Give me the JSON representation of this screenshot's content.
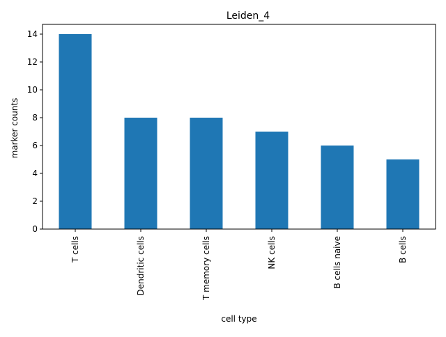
{
  "chart_data": {
    "type": "bar",
    "title": "Leiden_4",
    "xlabel": "cell type",
    "ylabel": "marker counts",
    "categories": [
      "T cells",
      "Dendritic cells",
      "T memory cells",
      "NK cells",
      "B cells naive",
      "B cells"
    ],
    "values": [
      14,
      8,
      8,
      7,
      6,
      5
    ],
    "ylim": [
      0,
      14.7
    ],
    "yticks": [
      0,
      2,
      4,
      6,
      8,
      10,
      12,
      14
    ],
    "grid": false,
    "legend": "none",
    "bar_color": "#1f77b4"
  }
}
